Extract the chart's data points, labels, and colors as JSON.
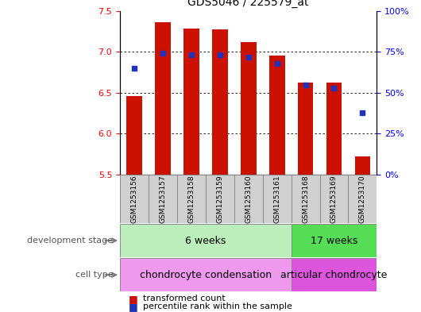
{
  "title": "GDS5046 / 225579_at",
  "samples": [
    "GSM1253156",
    "GSM1253157",
    "GSM1253158",
    "GSM1253159",
    "GSM1253160",
    "GSM1253161",
    "GSM1253168",
    "GSM1253169",
    "GSM1253170"
  ],
  "transformed_count": [
    6.46,
    7.36,
    7.28,
    7.27,
    7.12,
    6.95,
    6.63,
    6.63,
    5.72
  ],
  "percentile_rank": [
    65,
    74,
    73,
    73,
    72,
    68,
    55,
    53,
    38
  ],
  "y_min": 5.5,
  "y_max": 7.5,
  "y_ticks": [
    5.5,
    6.0,
    6.5,
    7.0,
    7.5
  ],
  "y_right_ticks": [
    0,
    25,
    50,
    75,
    100
  ],
  "y_right_labels": [
    "0%",
    "25%",
    "50%",
    "75%",
    "100%"
  ],
  "bar_color": "#cc1100",
  "marker_color": "#2233bb",
  "group1_label": "6 weeks",
  "group2_label": "17 weeks",
  "group1_color": "#bbeebb",
  "group2_color": "#55dd55",
  "celltype1_label": "chondrocyte condensation",
  "celltype2_label": "articular chondrocyte",
  "celltype1_color": "#ee99ee",
  "celltype2_color": "#dd55dd",
  "group1_samples": 6,
  "group2_samples": 3,
  "dev_stage_label": "development stage",
  "cell_type_label": "cell type",
  "legend_bar_label": "transformed count",
  "legend_marker_label": "percentile rank within the sample",
  "title_fontsize": 10,
  "tick_fontsize": 8,
  "sample_fontsize": 6.5,
  "row_fontsize": 9,
  "legend_fontsize": 8
}
